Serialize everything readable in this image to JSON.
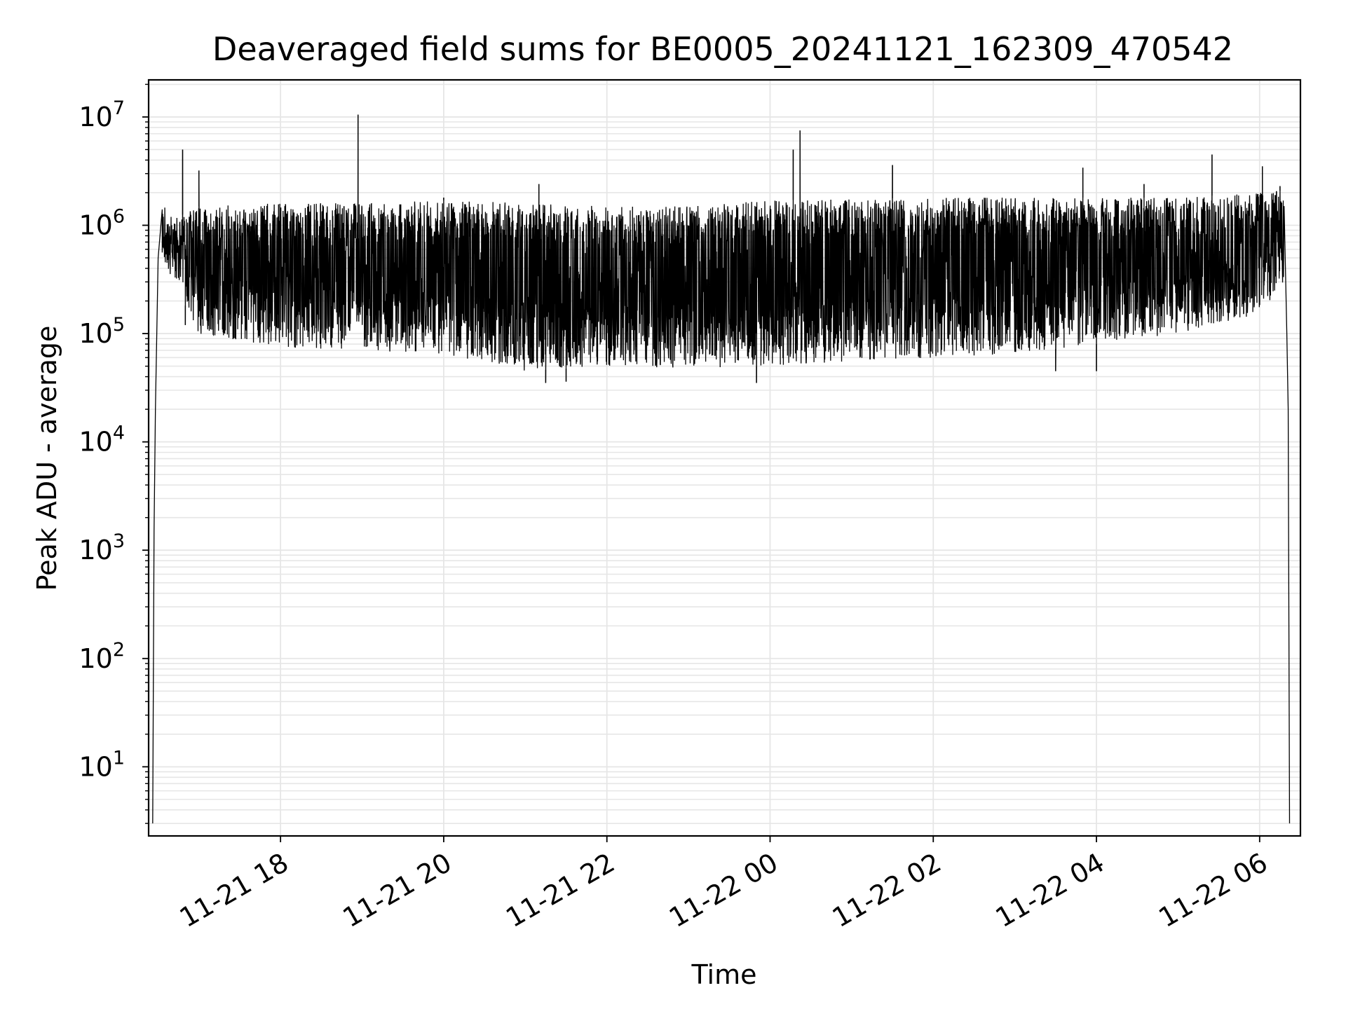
{
  "chart_data": {
    "type": "line",
    "title": "Deaveraged field sums for BE0005_20241121_162309_470542",
    "xlabel": "Time",
    "ylabel": "Peak ADU - average",
    "yscale": "log",
    "ylim": [
      2.3,
      22000000
    ],
    "xlim": [
      "2024-11-21 16:23",
      "2024-11-22 06:30"
    ],
    "grid": true,
    "grid_minor": true,
    "line_color": "#000000",
    "grid_color": "#e6e6e6",
    "x_ticks": [
      {
        "t": "2024-11-21 18:00",
        "label": "11-21 18"
      },
      {
        "t": "2024-11-21 20:00",
        "label": "11-21 20"
      },
      {
        "t": "2024-11-21 22:00",
        "label": "11-21 22"
      },
      {
        "t": "2024-11-22 00:00",
        "label": "11-22 00"
      },
      {
        "t": "2024-11-22 02:00",
        "label": "11-22 02"
      },
      {
        "t": "2024-11-22 04:00",
        "label": "11-22 04"
      },
      {
        "t": "2024-11-22 06:00",
        "label": "11-22 06"
      }
    ],
    "y_ticks": [
      {
        "value": 10,
        "base": "10",
        "exp": "1"
      },
      {
        "value": 100,
        "base": "10",
        "exp": "2"
      },
      {
        "value": 1000,
        "base": "10",
        "exp": "3"
      },
      {
        "value": 10000,
        "base": "10",
        "exp": "4"
      },
      {
        "value": 100000,
        "base": "10",
        "exp": "5"
      },
      {
        "value": 1000000,
        "base": "10",
        "exp": "6"
      },
      {
        "value": 10000000,
        "base": "10",
        "exp": "7"
      }
    ],
    "envelope": {
      "description": "dense oscillating series, upper/lower bounds per time",
      "points": [
        {
          "t": "2024-11-21 16:33",
          "upper": 1000000,
          "lower": 500000
        },
        {
          "t": "2024-11-21 17:00",
          "upper": 1500000,
          "lower": 100000
        },
        {
          "t": "2024-11-21 18:00",
          "upper": 1600000,
          "lower": 75000
        },
        {
          "t": "2024-11-21 19:00",
          "upper": 1600000,
          "lower": 70000
        },
        {
          "t": "2024-11-21 20:00",
          "upper": 1700000,
          "lower": 65000
        },
        {
          "t": "2024-11-21 21:00",
          "upper": 1600000,
          "lower": 45000
        },
        {
          "t": "2024-11-21 22:00",
          "upper": 1500000,
          "lower": 50000
        },
        {
          "t": "2024-11-21 23:00",
          "upper": 1500000,
          "lower": 48000
        },
        {
          "t": "2024-11-22 00:00",
          "upper": 1700000,
          "lower": 50000
        },
        {
          "t": "2024-11-22 01:00",
          "upper": 1750000,
          "lower": 55000
        },
        {
          "t": "2024-11-22 02:00",
          "upper": 1800000,
          "lower": 60000
        },
        {
          "t": "2024-11-22 03:00",
          "upper": 1800000,
          "lower": 65000
        },
        {
          "t": "2024-11-22 04:00",
          "upper": 1800000,
          "lower": 80000
        },
        {
          "t": "2024-11-22 05:00",
          "upper": 1800000,
          "lower": 100000
        },
        {
          "t": "2024-11-22 06:00",
          "upper": 2000000,
          "lower": 150000
        },
        {
          "t": "2024-11-22 06:18",
          "upper": 2100000,
          "lower": 300000
        }
      ]
    },
    "series_edges": [
      {
        "t": "2024-11-21 16:26",
        "value": 3
      },
      {
        "t": "2024-11-21 16:27",
        "value": 1500
      },
      {
        "t": "2024-11-21 16:28",
        "value": 20000
      },
      {
        "t": "2024-11-21 16:30",
        "value": 500000
      },
      {
        "t": "2024-11-21 16:33",
        "value": 1400000
      },
      {
        "t": "2024-11-22 06:20",
        "value": 100000
      },
      {
        "t": "2024-11-22 06:21",
        "value": 20000
      },
      {
        "t": "2024-11-22 06:22",
        "value": 3
      }
    ],
    "spikes": [
      {
        "t": "2024-11-21 16:48",
        "value": 5000000
      },
      {
        "t": "2024-11-21 17:00",
        "value": 3200000
      },
      {
        "t": "2024-11-21 18:57",
        "value": 10500000
      },
      {
        "t": "2024-11-21 20:00",
        "value": 1800000
      },
      {
        "t": "2024-11-21 21:10",
        "value": 2400000
      },
      {
        "t": "2024-11-22 00:17",
        "value": 5000000
      },
      {
        "t": "2024-11-22 00:22",
        "value": 7500000
      },
      {
        "t": "2024-11-22 01:30",
        "value": 3600000
      },
      {
        "t": "2024-11-22 03:50",
        "value": 3400000
      },
      {
        "t": "2024-11-22 04:35",
        "value": 2400000
      },
      {
        "t": "2024-11-22 05:25",
        "value": 4500000
      },
      {
        "t": "2024-11-22 06:02",
        "value": 3500000
      },
      {
        "t": "2024-11-22 06:15",
        "value": 2300000
      }
    ],
    "dips": [
      {
        "t": "2024-11-21 16:50",
        "value": 120000
      },
      {
        "t": "2024-11-21 21:15",
        "value": 35000
      },
      {
        "t": "2024-11-21 21:30",
        "value": 36000
      },
      {
        "t": "2024-11-21 23:50",
        "value": 35000
      },
      {
        "t": "2024-11-22 03:30",
        "value": 45000
      },
      {
        "t": "2024-11-22 04:00",
        "value": 45000
      }
    ]
  }
}
